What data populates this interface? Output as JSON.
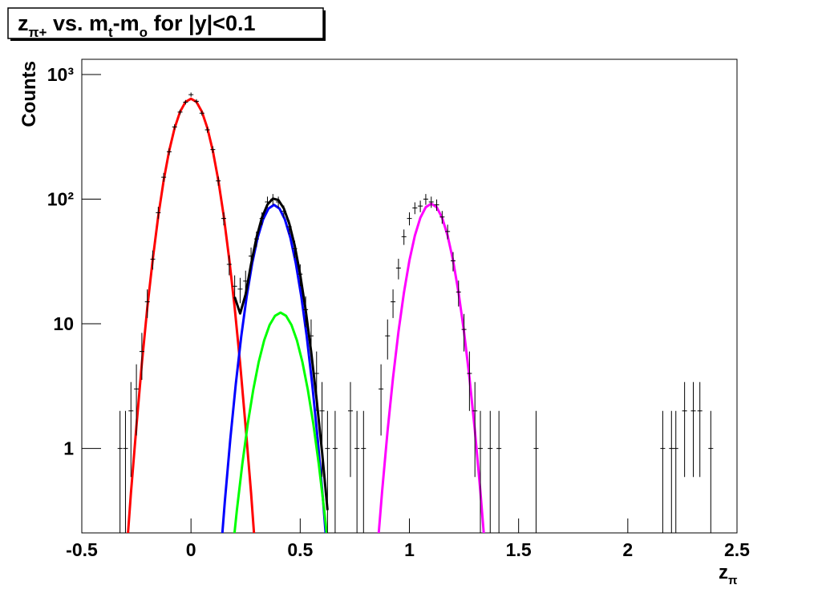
{
  "chart_data": {
    "type": "histogram-fit",
    "title": [
      {
        "text": "z"
      },
      {
        "text": "π+",
        "sub": true
      },
      {
        "text": " vs. m"
      },
      {
        "text": "t",
        "sub": true
      },
      {
        "text": "-m"
      },
      {
        "text": "o",
        "sub": true
      },
      {
        "text": " for |y|<0.1"
      }
    ],
    "x_label": [
      {
        "text": "z"
      },
      {
        "text": "π",
        "sub": true
      }
    ],
    "y_label": "Counts",
    "log_y": true,
    "xlim": [
      -0.5,
      2.5
    ],
    "xticks": [
      -0.5,
      0,
      0.5,
      1,
      1.5,
      2,
      2.5
    ],
    "ylim": [
      0.21,
      1325
    ],
    "yticks": [
      1,
      10,
      {
        "value": 100,
        "label": "10²"
      },
      {
        "value": 1000,
        "label": "10³"
      }
    ],
    "histogram": {
      "color": "#000000",
      "x": [
        -0.325,
        -0.3,
        -0.275,
        -0.25,
        -0.225,
        -0.2,
        -0.175,
        -0.15,
        -0.125,
        -0.1,
        -0.075,
        -0.05,
        -0.025,
        0,
        0.025,
        0.05,
        0.075,
        0.1,
        0.125,
        0.15,
        0.175,
        0.2,
        0.225,
        0.25,
        0.275,
        0.3,
        0.325,
        0.35,
        0.375,
        0.4,
        0.425,
        0.45,
        0.475,
        0.5,
        0.525,
        0.55,
        0.575,
        0.6,
        0.625,
        0.66,
        0.73,
        0.76,
        0.79,
        0.87,
        0.9,
        0.925,
        0.95,
        0.975,
        1,
        1.025,
        1.05,
        1.075,
        1.1,
        1.125,
        1.15,
        1.175,
        1.2,
        1.225,
        1.25,
        1.275,
        1.3,
        1.325,
        1.37,
        1.41,
        1.58,
        2.16,
        2.2,
        2.22,
        2.26,
        2.3,
        2.33,
        2.38
      ],
      "values": [
        1,
        1,
        2,
        3,
        6,
        15,
        33,
        78,
        150,
        240,
        380,
        500,
        600,
        690,
        610,
        490,
        360,
        250,
        140,
        70,
        30,
        20,
        19,
        22,
        35,
        48,
        70,
        95,
        100,
        95,
        80,
        60,
        40,
        25,
        13,
        8,
        4,
        2,
        1,
        1,
        2,
        1,
        1,
        3,
        8,
        15,
        28,
        50,
        70,
        85,
        88,
        100,
        95,
        90,
        72,
        55,
        32,
        18,
        9,
        4,
        2,
        1,
        1,
        1,
        1,
        1,
        1,
        1,
        2,
        2,
        2,
        1
      ],
      "errors": [
        1,
        1,
        1.41,
        1.73,
        2.45,
        3.87,
        5.74,
        8.83,
        12.2,
        15.5,
        19.5,
        22.4,
        24.5,
        26.3,
        24.7,
        22.1,
        19,
        15.8,
        11.8,
        8.37,
        5.48,
        4.47,
        4.36,
        4.69,
        5.92,
        6.93,
        8.37,
        9.75,
        10,
        9.75,
        8.94,
        7.75,
        6.32,
        5,
        3.61,
        2.83,
        2,
        1.41,
        1,
        1,
        1.41,
        1,
        1,
        1.73,
        2.83,
        3.87,
        5.29,
        7.07,
        8.37,
        9.22,
        9.38,
        10,
        9.75,
        9.49,
        8.49,
        7.42,
        5.66,
        4.24,
        3,
        2,
        1.41,
        1,
        1,
        1,
        1,
        1,
        1,
        1,
        1.41,
        1.41,
        1.41,
        1
      ]
    },
    "fits": [
      {
        "color": "#ff0000",
        "x": [
          -0.3,
          -0.275,
          -0.25,
          -0.225,
          -0.2,
          -0.175,
          -0.15,
          -0.125,
          -0.1,
          -0.075,
          -0.05,
          -0.025,
          0,
          0.025,
          0.05,
          0.075,
          0.1,
          0.125,
          0.15,
          0.175,
          0.2,
          0.225,
          0.25,
          0.275,
          0.3
        ],
        "values": [
          0.11,
          0.44,
          1.5,
          4.8,
          13.5,
          33,
          73,
          142,
          244,
          372,
          503,
          603,
          640,
          603,
          503,
          372,
          244,
          142,
          73,
          33,
          13.5,
          4.8,
          1.5,
          0.44,
          0.11
        ]
      },
      {
        "color": "#0000ff",
        "x": [
          0.13,
          0.155,
          0.18,
          0.205,
          0.23,
          0.255,
          0.28,
          0.305,
          0.33,
          0.355,
          0.38,
          0.405,
          0.43,
          0.455,
          0.48,
          0.505,
          0.53,
          0.555,
          0.58,
          0.605,
          0.63
        ],
        "values": [
          0.104,
          0.377,
          1.19,
          3.28,
          7.9,
          16.6,
          30.5,
          49,
          68.7,
          84.1,
          90,
          84.1,
          68.7,
          49,
          30.5,
          16.6,
          7.9,
          3.28,
          1.19,
          0.377,
          0.104
        ]
      },
      {
        "color": "#00ff00",
        "x": [
          0.185,
          0.21,
          0.235,
          0.26,
          0.285,
          0.31,
          0.335,
          0.36,
          0.385,
          0.41,
          0.435,
          0.46,
          0.485,
          0.51,
          0.535,
          0.56,
          0.585,
          0.61,
          0.635
        ],
        "values": [
          0.121,
          0.319,
          0.75,
          1.58,
          2.95,
          4.94,
          7.36,
          9.79,
          11.6,
          12.3,
          11.6,
          9.79,
          7.36,
          4.94,
          2.95,
          1.58,
          0.75,
          0.319,
          0.121
        ]
      },
      {
        "color": "#000000",
        "x": [
          0.2,
          0.225,
          0.25,
          0.275,
          0.3,
          0.325,
          0.35,
          0.375,
          0.4,
          0.425,
          0.45,
          0.475,
          0.5,
          0.525,
          0.55,
          0.575,
          0.6,
          0.625
        ],
        "values": [
          16.4,
          12.1,
          17.2,
          30.1,
          49.2,
          71.3,
          90.5,
          101,
          98.4,
          84.3,
          63.6,
          42.3,
          24.8,
          12.9,
          6,
          2.49,
          0.94,
          0.32
        ]
      },
      {
        "color": "#ff00ff",
        "x": [
          0.85,
          0.875,
          0.9,
          0.925,
          0.95,
          0.975,
          1,
          1.025,
          1.05,
          1.075,
          1.1,
          1.125,
          1.15,
          1.175,
          1.2,
          1.225,
          1.25,
          1.275,
          1.3,
          1.325,
          1.35
        ],
        "values": [
          0.13,
          0.451,
          1.38,
          3.69,
          8.66,
          17.8,
          32.2,
          51,
          70.8,
          86.2,
          92,
          86.2,
          70.8,
          51,
          32.2,
          17.8,
          8.66,
          3.69,
          1.38,
          0.451,
          0.13
        ]
      }
    ]
  }
}
